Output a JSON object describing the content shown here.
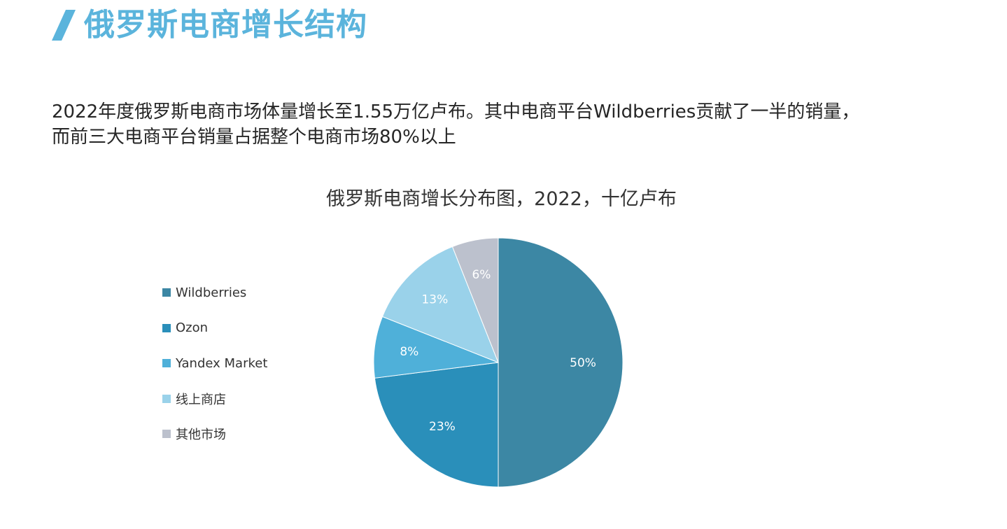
{
  "header": {
    "title": "俄罗斯电商增长结构",
    "accent_color": "#5bb4dc"
  },
  "intro": {
    "line1": "2022年度俄罗斯电商市场体量增长至1.55万亿卢布。其中电商平台Wildberries贡献了一半的销量，",
    "line2": "而前三大电商平台销量占据整个电商市场80%以上"
  },
  "chart_data": {
    "type": "pie",
    "title": "俄罗斯电商增长分布图，2022，十亿卢布",
    "legend_position": "left",
    "slices": [
      {
        "name": "Wildberries",
        "value": 50,
        "label": "50%",
        "color": "#3c87a4"
      },
      {
        "name": "Ozon",
        "value": 23,
        "label": "23%",
        "color": "#2a8fba"
      },
      {
        "name": "Yandex Market",
        "value": 8,
        "label": "8%",
        "color": "#4fb0d9"
      },
      {
        "name": "线上商店",
        "value": 13,
        "label": "13%",
        "color": "#9ad2ea"
      },
      {
        "name": "其他市场",
        "value": 6,
        "label": "6%",
        "color": "#bcc1cd"
      }
    ]
  }
}
